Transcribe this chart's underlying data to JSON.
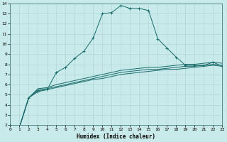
{
  "xlabel": "Humidex (Indice chaleur)",
  "ylabel": "",
  "background_color": "#c8eaea",
  "grid_color": "#b0d8d8",
  "line_color": "#1a6b6b",
  "xlim": [
    -0.5,
    23.5
  ],
  "ylim": [
    2,
    14
  ],
  "x_ticks": [
    0,
    1,
    2,
    3,
    4,
    5,
    6,
    7,
    8,
    9,
    10,
    11,
    12,
    13,
    14,
    15,
    16,
    17,
    18,
    19,
    20,
    21,
    22,
    23
  ],
  "y_ticks": [
    2,
    3,
    4,
    5,
    6,
    7,
    8,
    9,
    10,
    11,
    12,
    13,
    14
  ],
  "series": [
    {
      "x": [
        0,
        1,
        2,
        3,
        4,
        5,
        6,
        7,
        8,
        9,
        10,
        11,
        12,
        13,
        14,
        15,
        16,
        17,
        18,
        19,
        20,
        21,
        22,
        23
      ],
      "y": [
        2.0,
        1.8,
        4.7,
        5.3,
        5.5,
        7.2,
        7.7,
        8.6,
        9.3,
        10.6,
        13.0,
        13.1,
        13.8,
        13.5,
        13.5,
        13.3,
        10.5,
        9.6,
        8.7,
        7.9,
        7.9,
        7.9,
        8.2,
        7.8
      ],
      "marker": "+"
    },
    {
      "x": [
        0,
        1,
        2,
        3,
        4,
        5,
        6,
        7,
        8,
        9,
        10,
        11,
        12,
        13,
        14,
        15,
        16,
        17,
        18,
        19,
        20,
        21,
        22,
        23
      ],
      "y": [
        2.0,
        1.8,
        4.7,
        5.4,
        5.5,
        5.7,
        5.9,
        6.1,
        6.3,
        6.5,
        6.6,
        6.8,
        7.0,
        7.1,
        7.2,
        7.3,
        7.4,
        7.5,
        7.5,
        7.6,
        7.7,
        7.8,
        7.9,
        7.8
      ],
      "marker": null
    },
    {
      "x": [
        0,
        1,
        2,
        3,
        4,
        5,
        6,
        7,
        8,
        9,
        10,
        11,
        12,
        13,
        14,
        15,
        16,
        17,
        18,
        19,
        20,
        21,
        22,
        23
      ],
      "y": [
        2.0,
        1.8,
        4.7,
        5.5,
        5.6,
        5.8,
        6.0,
        6.2,
        6.4,
        6.6,
        6.8,
        7.0,
        7.2,
        7.3,
        7.4,
        7.5,
        7.5,
        7.6,
        7.7,
        7.8,
        7.8,
        7.9,
        8.0,
        7.9
      ],
      "marker": null
    },
    {
      "x": [
        0,
        1,
        2,
        3,
        4,
        5,
        6,
        7,
        8,
        9,
        10,
        11,
        12,
        13,
        14,
        15,
        16,
        17,
        18,
        19,
        20,
        21,
        22,
        23
      ],
      "y": [
        2.0,
        1.8,
        4.7,
        5.6,
        5.7,
        6.0,
        6.2,
        6.4,
        6.6,
        6.8,
        7.0,
        7.2,
        7.4,
        7.5,
        7.6,
        7.7,
        7.7,
        7.8,
        7.9,
        8.0,
        8.0,
        8.1,
        8.2,
        8.1
      ],
      "marker": null
    }
  ]
}
